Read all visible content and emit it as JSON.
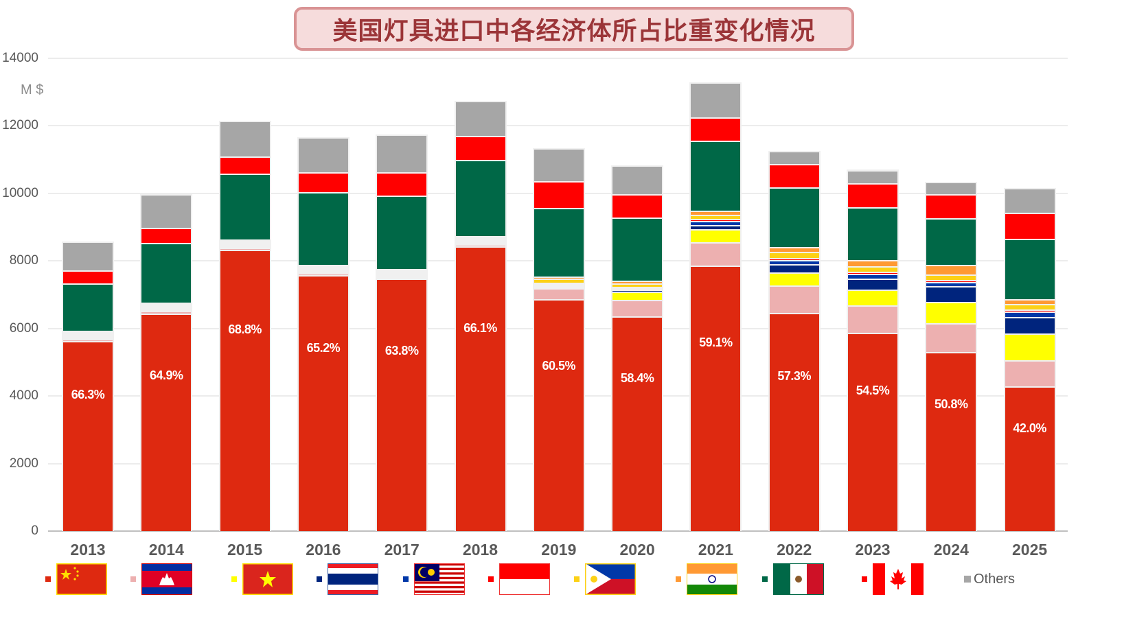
{
  "title": "美国灯具进口中各经济体所占比重变化情况",
  "unit_label": "M $",
  "y_ticks": [
    "14000",
    "12000",
    "10000",
    "8000",
    "6000",
    "4000",
    "2000",
    "0"
  ],
  "legend": [
    {
      "name": "China",
      "color": "#de2910",
      "icon": "china-flag-icon"
    },
    {
      "name": "Cambodia",
      "color": "#edb0b0",
      "icon": "cambodia-flag-icon"
    },
    {
      "name": "Vietnam",
      "color": "#ffff00",
      "icon": "vietnam-flag-icon"
    },
    {
      "name": "Thailand",
      "color": "#00247d",
      "icon": "thailand-flag-icon"
    },
    {
      "name": "Malaysia",
      "color": "#0038a8",
      "icon": "malaysia-flag-icon"
    },
    {
      "name": "Indonesia",
      "color": "#ff0000",
      "icon": "indonesia-flag-icon"
    },
    {
      "name": "Philippines",
      "color": "#fcd116",
      "icon": "philippines-flag-icon"
    },
    {
      "name": "India",
      "color": "#ff9933",
      "icon": "india-flag-icon"
    },
    {
      "name": "Mexico",
      "color": "#006847",
      "icon": "mexico-flag-icon"
    },
    {
      "name": "Canada",
      "color": "#ff0000",
      "icon": "canada-flag-icon"
    },
    {
      "name": "Others",
      "color": "#a6a6a6",
      "icon": "others-swatch-icon"
    }
  ],
  "chart_data": {
    "type": "bar",
    "stacked": true,
    "title": "美国灯具进口中各经济体所占比重变化情况",
    "xlabel": "",
    "ylabel": "M $",
    "ylim": [
      0,
      14000
    ],
    "grid": true,
    "legend_position": "bottom",
    "categories": [
      "2013",
      "2014",
      "2015",
      "2016",
      "2017",
      "2018",
      "2019",
      "2020",
      "2021",
      "2022",
      "2023",
      "2024",
      "2025"
    ],
    "china_share_labels": [
      "66.3%",
      "64.9%",
      "68.8%",
      "65.2%",
      "63.8%",
      "66.1%",
      "60.5%",
      "58.4%",
      "59.1%",
      "57.3%",
      "54.5%",
      "50.8%",
      "42.0%"
    ],
    "series": [
      {
        "name": "China",
        "color": "#de2910",
        "values": [
          5700,
          6490,
          8400,
          7630,
          7530,
          8480,
          6900,
          6370,
          7870,
          6470,
          5880,
          5300,
          4280
        ]
      },
      {
        "name": "Cambodia",
        "color": "#edb0b0",
        "values": [
          60,
          80,
          60,
          60,
          50,
          70,
          320,
          490,
          680,
          800,
          800,
          850,
          780
        ]
      },
      {
        "name": "Vietnam",
        "color": "#ffff00",
        "values": [
          30,
          40,
          30,
          40,
          40,
          40,
          40,
          240,
          400,
          400,
          480,
          640,
          800
        ]
      },
      {
        "name": "Thailand",
        "color": "#00247d",
        "values": [
          20,
          20,
          20,
          20,
          20,
          20,
          30,
          50,
          120,
          240,
          320,
          460,
          480
        ]
      },
      {
        "name": "Malaysia",
        "color": "#0038a8",
        "values": [
          10,
          10,
          10,
          10,
          10,
          10,
          20,
          40,
          120,
          120,
          150,
          120,
          160
        ]
      },
      {
        "name": "Indonesia",
        "color": "#ff0000",
        "values": [
          10,
          10,
          10,
          10,
          10,
          10,
          20,
          30,
          60,
          60,
          60,
          60,
          60
        ]
      },
      {
        "name": "Philippines",
        "color": "#fcd116",
        "values": [
          30,
          40,
          40,
          40,
          40,
          40,
          130,
          120,
          120,
          180,
          160,
          180,
          160
        ]
      },
      {
        "name": "India",
        "color": "#ff9933",
        "values": [
          30,
          40,
          40,
          40,
          40,
          40,
          60,
          80,
          120,
          140,
          180,
          280,
          160
        ]
      },
      {
        "name": "Mexico",
        "color": "#006847",
        "values": [
          1430,
          1800,
          1960,
          2170,
          2190,
          2270,
          2040,
          1870,
          2080,
          1770,
          1560,
          1370,
          1780
        ]
      },
      {
        "name": "Canada",
        "color": "#ff0000",
        "values": [
          400,
          450,
          520,
          600,
          690,
          720,
          790,
          680,
          680,
          700,
          710,
          710,
          780
        ]
      },
      {
        "name": "Others",
        "color": "#a6a6a6",
        "values": [
          860,
          990,
          1060,
          1040,
          1130,
          1050,
          980,
          870,
          1040,
          380,
          400,
          370,
          720
        ]
      }
    ]
  }
}
